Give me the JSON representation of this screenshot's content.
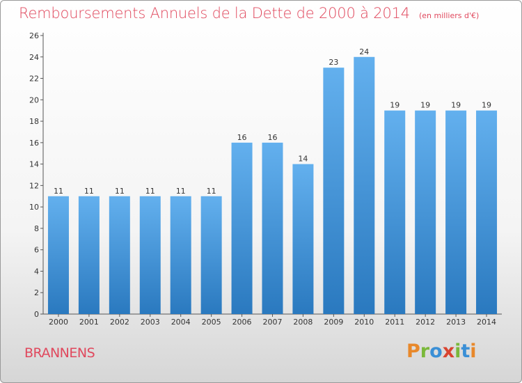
{
  "chart_data": {
    "type": "bar",
    "title": "Remboursements Annuels de la Dette de 2000 à 2014",
    "subtitle": "(en milliers d'€)",
    "categories": [
      "2000",
      "2001",
      "2002",
      "2003",
      "2004",
      "2005",
      "2006",
      "2007",
      "2008",
      "2009",
      "2010",
      "2011",
      "2012",
      "2013",
      "2014"
    ],
    "values": [
      11,
      11,
      11,
      11,
      11,
      11,
      16,
      16,
      14,
      23,
      24,
      19,
      19,
      19,
      19
    ],
    "ylim": [
      0,
      26
    ],
    "yticks": [
      0,
      2,
      4,
      6,
      8,
      10,
      12,
      14,
      16,
      18,
      20,
      22,
      24,
      26
    ],
    "xlabel": "",
    "ylabel": "",
    "grid": false,
    "bar_color": "#3a8fd6"
  },
  "footer": {
    "commune": "BRANNENS",
    "logo_text": "Proxiti"
  },
  "colors": {
    "title": "#e0485d",
    "logo_letters": [
      "#e8882a",
      "#7ab83a",
      "#3a8fd6",
      "#d9432f",
      "#7ab83a",
      "#3a8fd6",
      "#e8882a"
    ]
  }
}
